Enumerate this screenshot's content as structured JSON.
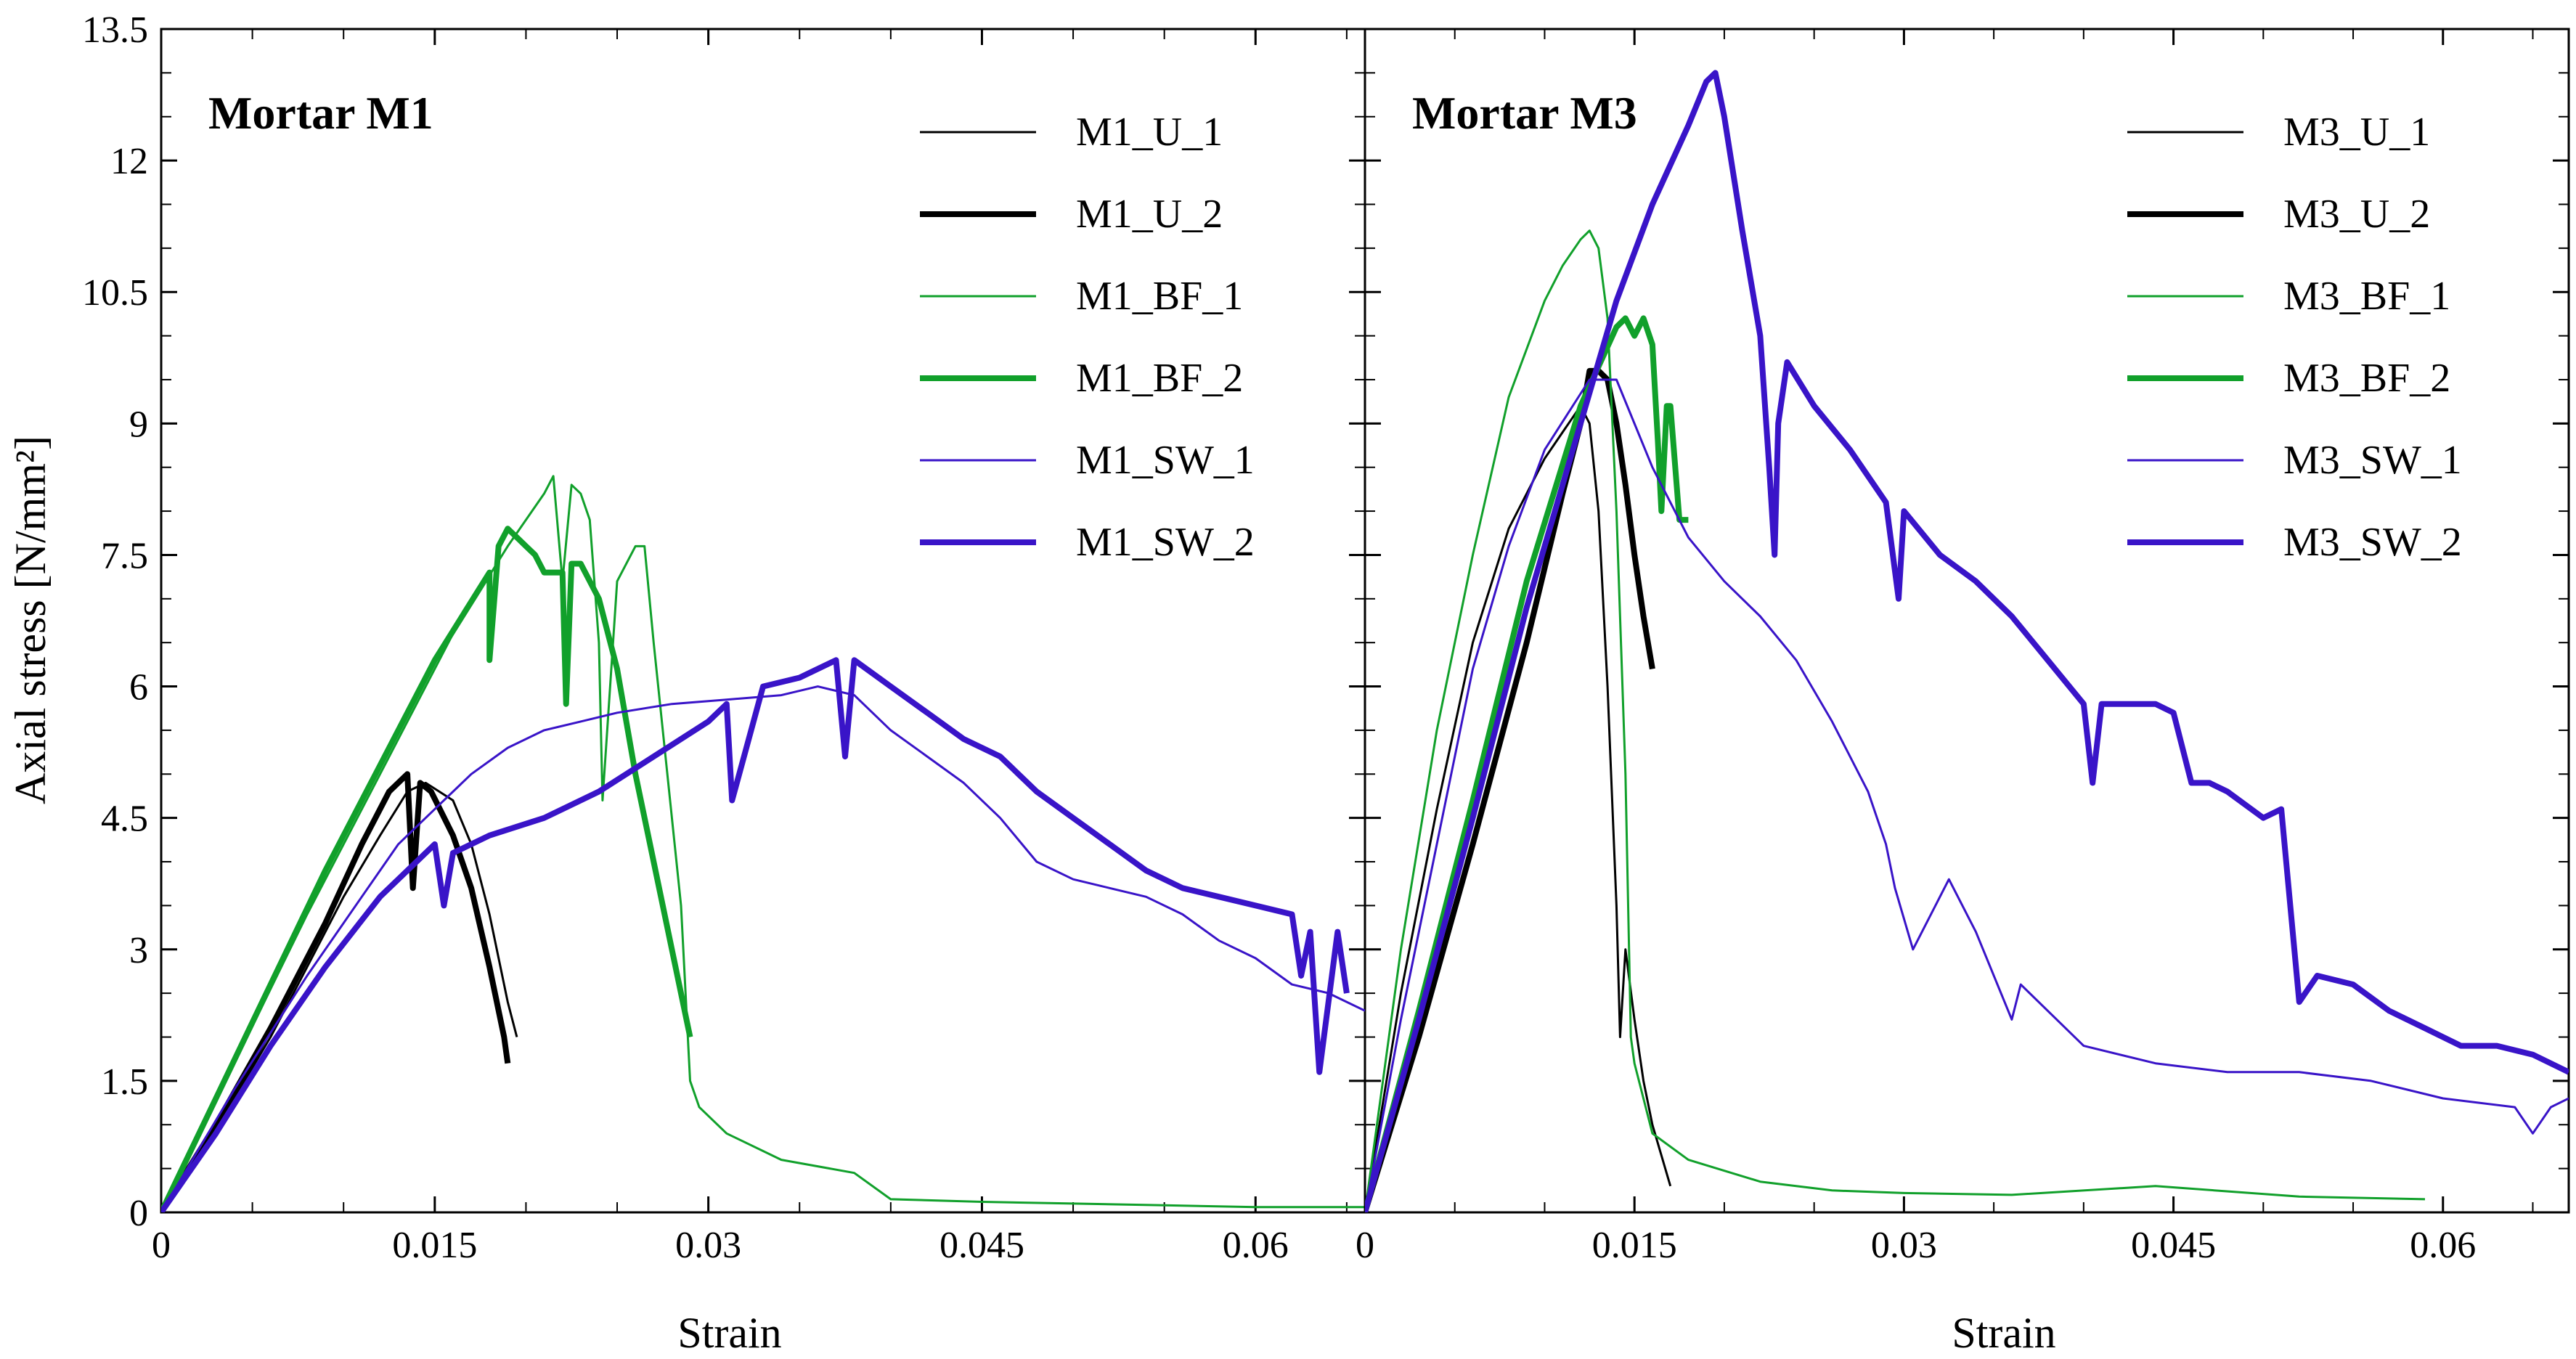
{
  "chart_data": {
    "type": "line",
    "ylabel": "Axial stress [N/mm²]",
    "xlabel": "Strain",
    "ylim": [
      0,
      13.5
    ],
    "yticks": [
      "0",
      "1.5",
      "3",
      "4.5",
      "6",
      "7.5",
      "9",
      "10.5",
      "12",
      "13.5"
    ],
    "colors": {
      "black": "#000000",
      "green": "#11a02b",
      "blue": "#3914c8"
    },
    "panels": [
      {
        "title": "Mortar M1",
        "xlim": [
          0,
          0.066
        ],
        "xticks": [
          "0",
          "0.015",
          "0.03",
          "0.045",
          "0.06"
        ],
        "series": [
          {
            "name": "M1_U_1",
            "color": "black",
            "weight": "thin",
            "x": [
              0,
              0.002,
              0.004,
              0.006,
              0.008,
              0.01,
              0.012,
              0.0135,
              0.0145,
              0.016,
              0.017,
              0.018,
              0.019,
              0.0195
            ],
            "y": [
              0,
              0.6,
              1.3,
              2.0,
              2.8,
              3.6,
              4.3,
              4.8,
              4.9,
              4.7,
              4.2,
              3.4,
              2.4,
              2.0
            ]
          },
          {
            "name": "M1_U_2",
            "color": "black",
            "weight": "thick",
            "x": [
              0,
              0.003,
              0.006,
              0.009,
              0.011,
              0.0125,
              0.0135,
              0.0138,
              0.0142,
              0.0148,
              0.016,
              0.017,
              0.018,
              0.0188,
              0.019
            ],
            "y": [
              0,
              1.0,
              2.1,
              3.3,
              4.2,
              4.8,
              5.0,
              3.7,
              4.9,
              4.8,
              4.3,
              3.7,
              2.8,
              2.0,
              1.7
            ]
          },
          {
            "name": "M1_BF_1",
            "color": "green",
            "weight": "thin",
            "x": [
              0,
              0.004,
              0.008,
              0.012,
              0.016,
              0.019,
              0.021,
              0.0215,
              0.022,
              0.0225,
              0.023,
              0.0235,
              0.024,
              0.0242,
              0.025,
              0.026,
              0.0265,
              0.027,
              0.0285,
              0.029,
              0.0295,
              0.031,
              0.034,
              0.038,
              0.04,
              0.045,
              0.05,
              0.055,
              0.06,
              0.066
            ],
            "y": [
              0,
              1.7,
              3.4,
              5.0,
              6.6,
              7.6,
              8.2,
              8.4,
              7.2,
              8.3,
              8.2,
              7.9,
              6.5,
              4.7,
              7.2,
              7.6,
              7.6,
              6.5,
              3.5,
              1.5,
              1.2,
              0.9,
              0.6,
              0.45,
              0.15,
              0.12,
              0.1,
              0.08,
              0.06,
              0.06
            ]
          },
          {
            "name": "M1_BF_2",
            "color": "green",
            "weight": "thick",
            "x": [
              0,
              0.003,
              0.006,
              0.009,
              0.012,
              0.015,
              0.018,
              0.018,
              0.0185,
              0.019,
              0.0195,
              0.02,
              0.0205,
              0.021,
              0.0215,
              0.022,
              0.0222,
              0.0225,
              0.023,
              0.024,
              0.025,
              0.026,
              0.027,
              0.028,
              0.029
            ],
            "y": [
              0,
              1.3,
              2.6,
              3.9,
              5.1,
              6.3,
              7.3,
              6.3,
              7.6,
              7.8,
              7.7,
              7.6,
              7.5,
              7.3,
              7.3,
              7.3,
              5.8,
              7.4,
              7.4,
              7.0,
              6.2,
              5.0,
              4.0,
              3.0,
              2.0
            ]
          },
          {
            "name": "M1_SW_1",
            "color": "blue",
            "weight": "thin",
            "x": [
              0,
              0.004,
              0.008,
              0.011,
              0.013,
              0.015,
              0.017,
              0.019,
              0.021,
              0.023,
              0.025,
              0.028,
              0.031,
              0.034,
              0.036,
              0.038,
              0.04,
              0.042,
              0.044,
              0.046,
              0.048,
              0.05,
              0.052,
              0.054,
              0.056,
              0.058,
              0.06,
              0.062,
              0.064,
              0.066
            ],
            "y": [
              0,
              1.4,
              2.7,
              3.6,
              4.2,
              4.6,
              5.0,
              5.3,
              5.5,
              5.6,
              5.7,
              5.8,
              5.85,
              5.9,
              6.0,
              5.9,
              5.5,
              5.2,
              4.9,
              4.5,
              4.0,
              3.8,
              3.7,
              3.6,
              3.4,
              3.1,
              2.9,
              2.6,
              2.5,
              2.3
            ]
          },
          {
            "name": "M1_SW_2",
            "color": "blue",
            "weight": "thick",
            "x": [
              0,
              0.003,
              0.006,
              0.009,
              0.012,
              0.015,
              0.0155,
              0.016,
              0.018,
              0.021,
              0.024,
              0.027,
              0.03,
              0.031,
              0.0313,
              0.033,
              0.035,
              0.036,
              0.037,
              0.0375,
              0.038,
              0.04,
              0.042,
              0.044,
              0.046,
              0.048,
              0.05,
              0.052,
              0.054,
              0.056,
              0.058,
              0.06,
              0.062,
              0.0625,
              0.063,
              0.0635,
              0.0645,
              0.065
            ],
            "y": [
              0,
              0.9,
              1.9,
              2.8,
              3.6,
              4.2,
              3.5,
              4.1,
              4.3,
              4.5,
              4.8,
              5.2,
              5.6,
              5.8,
              4.7,
              6.0,
              6.1,
              6.2,
              6.3,
              5.2,
              6.3,
              6.0,
              5.7,
              5.4,
              5.2,
              4.8,
              4.5,
              4.2,
              3.9,
              3.7,
              3.6,
              3.5,
              3.4,
              2.7,
              3.2,
              1.6,
              3.2,
              2.5
            ]
          }
        ]
      },
      {
        "title": "Mortar M3",
        "xlim": [
          0,
          0.067
        ],
        "xticks": [
          "0",
          "0.015",
          "0.03",
          "0.045",
          "0.06"
        ],
        "series": [
          {
            "name": "M3_U_1",
            "color": "black",
            "weight": "thin",
            "x": [
              0,
              0.002,
              0.004,
              0.006,
              0.008,
              0.01,
              0.011,
              0.012,
              0.0125,
              0.013,
              0.0135,
              0.014,
              0.0142,
              0.0145,
              0.015,
              0.0155,
              0.016,
              0.017
            ],
            "y": [
              0,
              2.5,
              4.6,
              6.5,
              7.8,
              8.6,
              8.9,
              9.2,
              9.0,
              8.0,
              6.0,
              3.5,
              2.0,
              3.0,
              2.2,
              1.5,
              1.0,
              0.3
            ]
          },
          {
            "name": "M3_U_2",
            "color": "black",
            "weight": "thick",
            "x": [
              0,
              0.003,
              0.006,
              0.009,
              0.011,
              0.012,
              0.0125,
              0.013,
              0.0135,
              0.014,
              0.0145,
              0.015,
              0.0155,
              0.016
            ],
            "y": [
              0,
              2.0,
              4.2,
              6.5,
              8.2,
              9.0,
              9.6,
              9.6,
              9.5,
              9.0,
              8.3,
              7.5,
              6.8,
              6.2
            ]
          },
          {
            "name": "M3_BF_1",
            "color": "green",
            "weight": "thin",
            "x": [
              0,
              0.002,
              0.004,
              0.006,
              0.008,
              0.01,
              0.011,
              0.012,
              0.0125,
              0.013,
              0.0135,
              0.014,
              0.0145,
              0.0148,
              0.015,
              0.016,
              0.018,
              0.022,
              0.026,
              0.03,
              0.036,
              0.044,
              0.052,
              0.059
            ],
            "y": [
              0,
              3.0,
              5.5,
              7.5,
              9.3,
              10.4,
              10.8,
              11.1,
              11.2,
              11.0,
              10.2,
              8.0,
              5.0,
              2.0,
              1.7,
              0.9,
              0.6,
              0.35,
              0.25,
              0.22,
              0.2,
              0.3,
              0.18,
              0.15
            ]
          },
          {
            "name": "M3_BF_2",
            "color": "green",
            "weight": "thick",
            "x": [
              0,
              0.003,
              0.006,
              0.009,
              0.012,
              0.014,
              0.0145,
              0.015,
              0.0155,
              0.016,
              0.0163,
              0.0165,
              0.0168,
              0.017,
              0.0175,
              0.018
            ],
            "y": [
              0,
              2.3,
              4.7,
              7.2,
              9.2,
              10.1,
              10.2,
              10.0,
              10.2,
              9.9,
              8.8,
              8.0,
              9.2,
              9.2,
              7.9,
              7.9
            ]
          },
          {
            "name": "M3_SW_1",
            "color": "blue",
            "weight": "thin",
            "x": [
              0,
              0.002,
              0.004,
              0.006,
              0.008,
              0.01,
              0.0125,
              0.014,
              0.016,
              0.018,
              0.02,
              0.022,
              0.024,
              0.026,
              0.028,
              0.029,
              0.0295,
              0.0305,
              0.0325,
              0.034,
              0.036,
              0.0365,
              0.04,
              0.044,
              0.048,
              0.052,
              0.056,
              0.06,
              0.064,
              0.065,
              0.066,
              0.067
            ],
            "y": [
              0,
              2.2,
              4.2,
              6.2,
              7.6,
              8.7,
              9.5,
              9.5,
              8.5,
              7.7,
              7.2,
              6.8,
              6.3,
              5.6,
              4.8,
              4.2,
              3.7,
              3.0,
              3.8,
              3.2,
              2.2,
              2.6,
              1.9,
              1.7,
              1.6,
              1.6,
              1.5,
              1.3,
              1.2,
              0.9,
              1.2,
              1.3
            ]
          },
          {
            "name": "M3_SW_2",
            "color": "blue",
            "weight": "thick",
            "x": [
              0,
              0.003,
              0.006,
              0.009,
              0.012,
              0.014,
              0.016,
              0.018,
              0.019,
              0.0195,
              0.02,
              0.021,
              0.022,
              0.0225,
              0.0228,
              0.023,
              0.0235,
              0.025,
              0.027,
              0.029,
              0.0297,
              0.03,
              0.032,
              0.034,
              0.036,
              0.038,
              0.04,
              0.0405,
              0.041,
              0.044,
              0.045,
              0.046,
              0.047,
              0.048,
              0.05,
              0.051,
              0.052,
              0.053,
              0.055,
              0.057,
              0.059,
              0.061,
              0.063,
              0.065,
              0.067
            ],
            "y": [
              0,
              2.2,
              4.5,
              6.9,
              9.0,
              10.4,
              11.5,
              12.4,
              12.9,
              13.0,
              12.5,
              11.2,
              10.0,
              8.5,
              7.5,
              9.0,
              9.7,
              9.2,
              8.7,
              8.1,
              7.0,
              8.0,
              7.5,
              7.2,
              6.8,
              6.3,
              5.8,
              4.9,
              5.8,
              5.8,
              5.7,
              4.9,
              4.9,
              4.8,
              4.5,
              4.6,
              2.4,
              2.7,
              2.6,
              2.3,
              2.1,
              1.9,
              1.9,
              1.8,
              1.6
            ]
          }
        ]
      }
    ]
  }
}
